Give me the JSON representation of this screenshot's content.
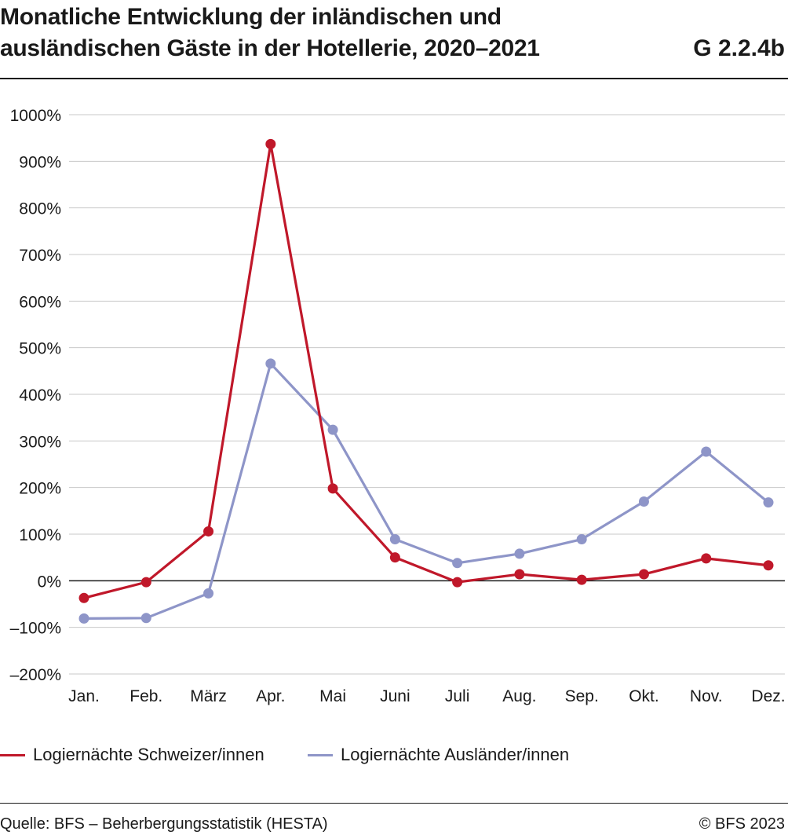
{
  "header": {
    "title_line1": "Monatliche Entwicklung der inländischen und",
    "title_line2": "ausländischen Gäste in der Hotellerie, 2020–2021",
    "code": "G 2.2.4b"
  },
  "footer": {
    "source": "Quelle: BFS – Beherbergungsstatistik (HESTA)",
    "copyright": "© BFS 2023"
  },
  "chart_data": {
    "type": "line",
    "title": "Monatliche Entwicklung der inländischen und ausländischen Gäste in der Hotellerie, 2020–2021",
    "xlabel": "",
    "ylabel": "",
    "categories": [
      "Jan.",
      "Feb.",
      "März",
      "Apr.",
      "Mai",
      "Juni",
      "Juli",
      "Aug.",
      "Sep.",
      "Okt.",
      "Nov.",
      "Dez."
    ],
    "ylim": [
      -200,
      1000
    ],
    "yticks": [
      -200,
      -100,
      0,
      100,
      200,
      300,
      400,
      500,
      600,
      700,
      800,
      900,
      1000
    ],
    "ytick_labels": [
      "–200%",
      "–100%",
      "0%",
      "100%",
      "200%",
      "300%",
      "400%",
      "500%",
      "600%",
      "700%",
      "800%",
      "900%",
      "1000%"
    ],
    "grid": true,
    "legend_position": "bottom",
    "series": [
      {
        "name": "Logiernächte Schweizer/innen",
        "color": "#c0182a",
        "values": [
          -37,
          -3,
          106,
          937,
          198,
          50,
          -3,
          14,
          2,
          14,
          48,
          33
        ]
      },
      {
        "name": "Logiernächte Ausländer/innen",
        "color": "#8e95c8",
        "values": [
          -81,
          -80,
          -27,
          466,
          324,
          89,
          38,
          58,
          89,
          170,
          277,
          168
        ]
      }
    ]
  }
}
